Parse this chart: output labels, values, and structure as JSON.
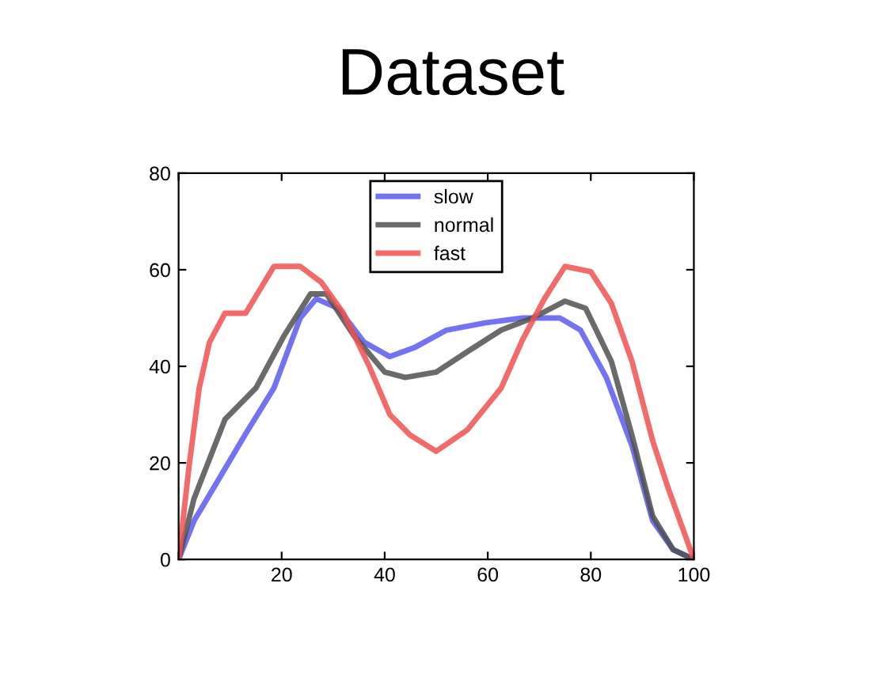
{
  "chart_data": {
    "type": "line",
    "title": "Dataset",
    "xlim": [
      0,
      100
    ],
    "xticks": [
      {
        "value": 0,
        "label": null
      },
      20,
      40,
      60,
      80,
      100
    ],
    "ylim": [
      0,
      80
    ],
    "yticks": [
      0,
      20,
      40,
      60,
      80
    ],
    "legend": "top",
    "grid": false,
    "marker": "none",
    "line_style": "solid",
    "series": [
      {
        "name": "slow",
        "color": "#5a5af0",
        "x": [
          0,
          3,
          8,
          13,
          18.5,
          23.6,
          26.7,
          31,
          36,
          41,
          46,
          52,
          59.5,
          66.7,
          74,
          78,
          83,
          88,
          92,
          96,
          100
        ],
        "values": [
          0,
          8,
          17,
          26,
          35.5,
          50,
          54,
          52,
          45,
          42,
          44,
          47.5,
          49,
          50,
          50,
          47.5,
          37.7,
          23.5,
          8,
          2,
          0
        ]
      },
      {
        "name": "normal",
        "color": "#505050",
        "x": [
          0,
          3,
          9,
          15,
          20.5,
          25.6,
          28.7,
          34,
          40,
          44,
          50,
          56,
          62.6,
          68.7,
          75,
          79,
          84,
          88,
          92,
          96,
          100
        ],
        "values": [
          0,
          12.6,
          29,
          35.5,
          46.4,
          55,
          55,
          46.4,
          38.8,
          37.7,
          38.8,
          43,
          47.5,
          50,
          53.5,
          52,
          41,
          25.7,
          9,
          2,
          0
        ]
      },
      {
        "name": "fast",
        "color": "#f05050",
        "x": [
          0,
          2,
          4,
          6,
          9,
          13,
          18.5,
          23.6,
          27.7,
          32,
          37,
          41,
          45,
          50,
          56,
          62.6,
          66.7,
          71,
          75,
          80,
          84,
          88,
          92,
          95,
          100
        ],
        "values": [
          0,
          19,
          35.5,
          45,
          51,
          51,
          60.7,
          60.7,
          57.4,
          51,
          40,
          30,
          25.7,
          22.4,
          26.8,
          35.5,
          45.4,
          54,
          60.7,
          59.6,
          53,
          41,
          24.6,
          14.8,
          0
        ]
      }
    ]
  }
}
